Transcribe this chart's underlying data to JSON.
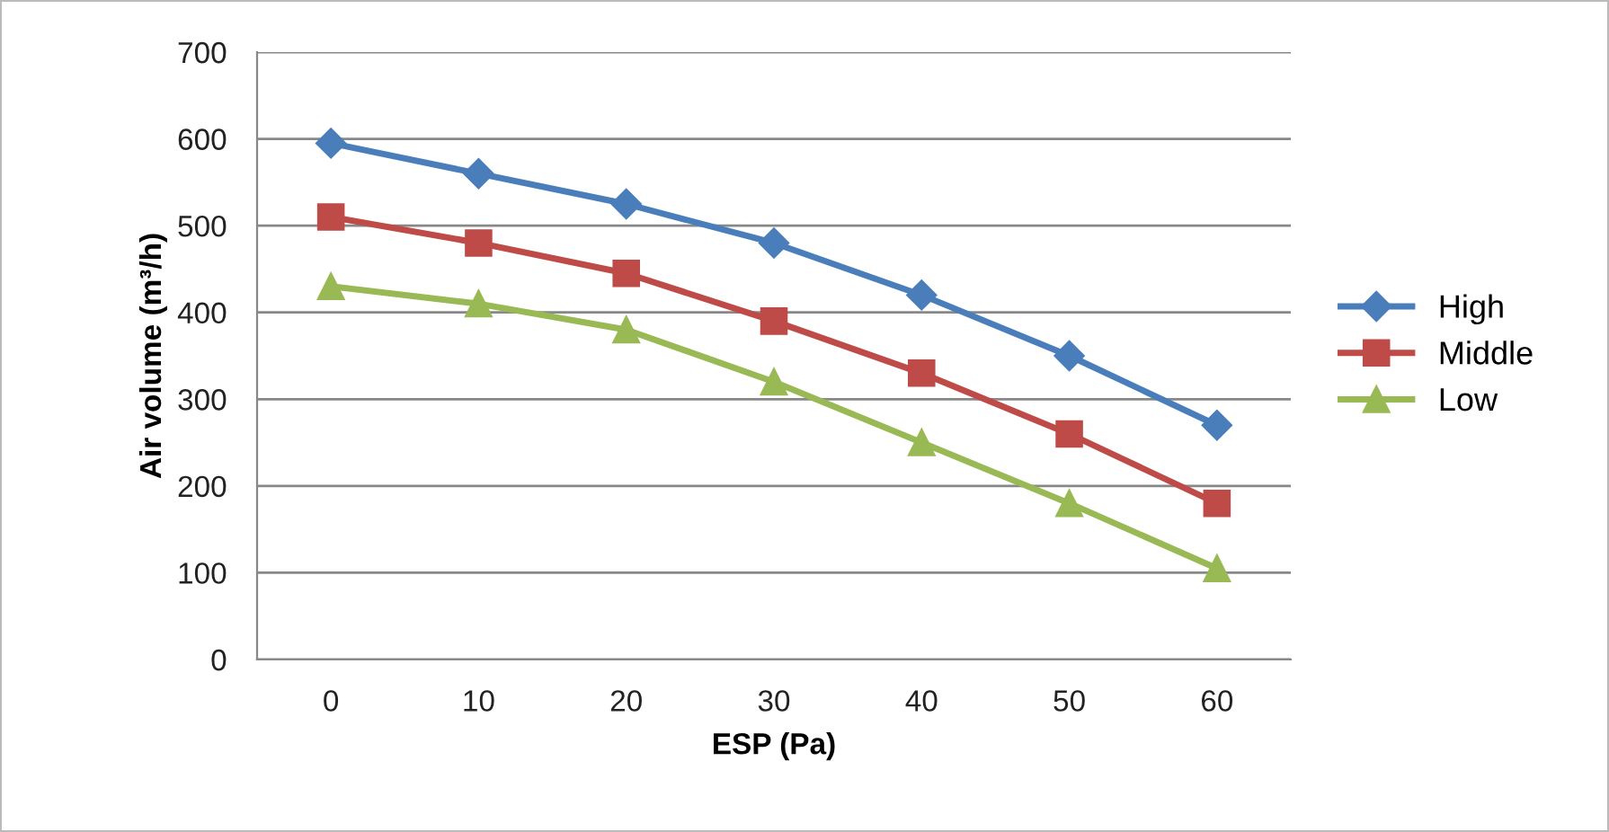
{
  "chart_data": {
    "type": "line",
    "xlabel": "ESP (Pa)",
    "ylabel": "Air volume (m³/h)",
    "categories": [
      "0",
      "10",
      "20",
      "30",
      "40",
      "50",
      "60"
    ],
    "series": [
      {
        "name": "High",
        "color": "#4a7ebb",
        "marker": "diamond",
        "values": [
          595,
          560,
          525,
          480,
          420,
          350,
          270
        ]
      },
      {
        "name": "Middle",
        "color": "#be4b48",
        "marker": "square",
        "values": [
          510,
          480,
          445,
          390,
          330,
          260,
          180
        ]
      },
      {
        "name": "Low",
        "color": "#98b954",
        "marker": "triangle",
        "values": [
          430,
          410,
          380,
          320,
          250,
          180,
          105
        ]
      }
    ],
    "ylim": [
      0,
      700
    ],
    "yticks": [
      0,
      100,
      200,
      300,
      400,
      500,
      600,
      700
    ],
    "grid": "y",
    "legend": "right"
  }
}
